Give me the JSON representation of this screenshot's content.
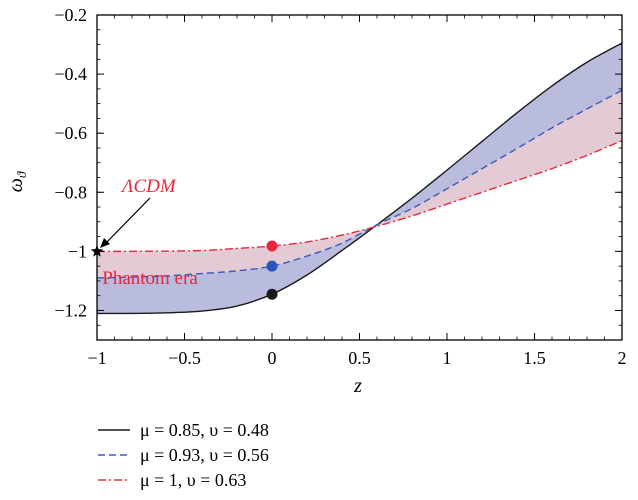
{
  "chart_data": {
    "type": "line",
    "xlabel": "z",
    "ylabel": "ω",
    "ylabel_sub": "ϑ",
    "xlim": [
      -1,
      2
    ],
    "ylim": [
      -1.3,
      -0.2
    ],
    "xticks": [
      -1,
      -0.5,
      0,
      0.5,
      1,
      1.5,
      2
    ],
    "xtick_labels": [
      "−1",
      "−0.5",
      "0",
      "0.5",
      "1",
      "1.5",
      "2"
    ],
    "yticks": [
      -1.2,
      -1,
      -0.8,
      -0.6,
      -0.4,
      -0.2
    ],
    "ytick_labels": [
      "−1.2",
      "−1",
      "−0.8",
      "−0.6",
      "−0.4",
      "−0.2"
    ],
    "x": [
      -1,
      -0.8,
      -0.6,
      -0.4,
      -0.2,
      0,
      0.2,
      0.4,
      0.6,
      0.8,
      1.0,
      1.2,
      1.4,
      1.6,
      1.8,
      2.0
    ],
    "series": [
      {
        "name": "μ = 0.85, υ = 0.48",
        "style": "solid",
        "color": "#1a1a1a",
        "values": [
          -1.21,
          -1.21,
          -1.208,
          -1.202,
          -1.185,
          -1.145,
          -1.08,
          -0.997,
          -0.91,
          -0.82,
          -0.725,
          -0.628,
          -0.531,
          -0.44,
          -0.36,
          -0.295
        ]
      },
      {
        "name": "μ = 0.93, υ = 0.56",
        "style": "dashed",
        "color": "#3b5bb5",
        "values": [
          -1.09,
          -1.087,
          -1.083,
          -1.075,
          -1.066,
          -1.05,
          -1.016,
          -0.972,
          -0.91,
          -0.855,
          -0.788,
          -0.72,
          -0.652,
          -0.582,
          -0.518,
          -0.455
        ]
      },
      {
        "name": "μ = 1, υ = 0.63",
        "style": "dashdot",
        "color": "#e8283a",
        "values": [
          -1.0,
          -1.0,
          -0.999,
          -0.997,
          -0.99,
          -0.982,
          -0.968,
          -0.945,
          -0.915,
          -0.88,
          -0.84,
          -0.8,
          -0.76,
          -0.72,
          -0.675,
          -0.625
        ]
      }
    ],
    "points": [
      {
        "x": 0,
        "y": -0.982,
        "color": "#e8283a"
      },
      {
        "x": 0,
        "y": -1.05,
        "color": "#2a55b8"
      },
      {
        "x": 0,
        "y": -1.145,
        "color": "#1a1a1a"
      }
    ],
    "star": {
      "x": -1,
      "y": -1.0,
      "label": "ΛCDM"
    },
    "annotation": {
      "text": "Phantom era",
      "x": -0.97,
      "y": -1.09
    },
    "fills": {
      "upper": "#d9b8c7",
      "lower": "#b6b8dc"
    },
    "legend_position": "bottom-left",
    "grid": false
  }
}
